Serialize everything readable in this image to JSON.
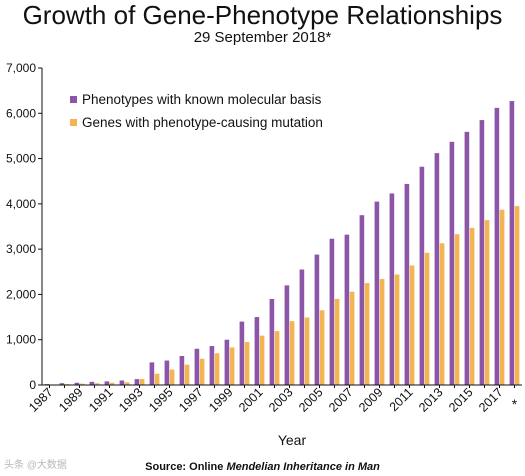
{
  "title": "Growth of Gene-Phenotype Relationships",
  "subtitle": "29 September 2018*",
  "source": {
    "prefix": "Source:  Online ",
    "italic": "Mendelian Inheritance in Man"
  },
  "watermark": "头条 @大数据",
  "colors": {
    "phenotypes": "#8c55a8",
    "genes": "#f2b552",
    "axis": "#111111"
  },
  "chart_data": {
    "type": "bar",
    "xlabel": "Year",
    "ylabel": "",
    "ylim": [
      0,
      7000
    ],
    "yticks": [
      0,
      1000,
      2000,
      3000,
      4000,
      5000,
      6000,
      7000
    ],
    "ytick_labels": [
      "0",
      "1,000",
      "2,000",
      "3,000",
      "4,000",
      "5,000",
      "6,000",
      "7,000"
    ],
    "legend_position": "top-left",
    "categories": [
      "1987",
      "1988",
      "1989",
      "1990",
      "1991",
      "1992",
      "1993",
      "1994",
      "1995",
      "1996",
      "1997",
      "1998",
      "1999",
      "2000",
      "2001",
      "2002",
      "2003",
      "2004",
      "2005",
      "2006",
      "2007",
      "2008",
      "2009",
      "2010",
      "2011",
      "2012",
      "2013",
      "2014",
      "2015",
      "2016",
      "2017",
      "*"
    ],
    "tick_labels": [
      "1987",
      "",
      "1989",
      "",
      "1991",
      "",
      "1993",
      "",
      "1995",
      "",
      "1997",
      "",
      "1999",
      "",
      "2001",
      "",
      "2003",
      "",
      "2005",
      "",
      "2007",
      "",
      "2009",
      "",
      "2011",
      "",
      "2013",
      "",
      "2015",
      "",
      "2017",
      "*"
    ],
    "series": [
      {
        "name": "Phenotypes with known molecular basis",
        "color": "#8c55a8",
        "values": [
          20,
          40,
          50,
          70,
          80,
          100,
          130,
          500,
          540,
          640,
          800,
          860,
          1000,
          1400,
          1500,
          1900,
          2200,
          2550,
          2880,
          3230,
          3320,
          3750,
          4050,
          4230,
          4440,
          4820,
          5120,
          5370,
          5590,
          5850,
          6120,
          6270
        ]
      },
      {
        "name": "Genes with phenotype-causing mutation",
        "color": "#f2b552",
        "values": [
          10,
          20,
          30,
          40,
          50,
          60,
          130,
          250,
          340,
          450,
          580,
          700,
          830,
          950,
          1090,
          1190,
          1410,
          1490,
          1650,
          1900,
          2060,
          2250,
          2340,
          2440,
          2640,
          2920,
          3130,
          3330,
          3470,
          3640,
          3870,
          3950
        ]
      }
    ]
  }
}
